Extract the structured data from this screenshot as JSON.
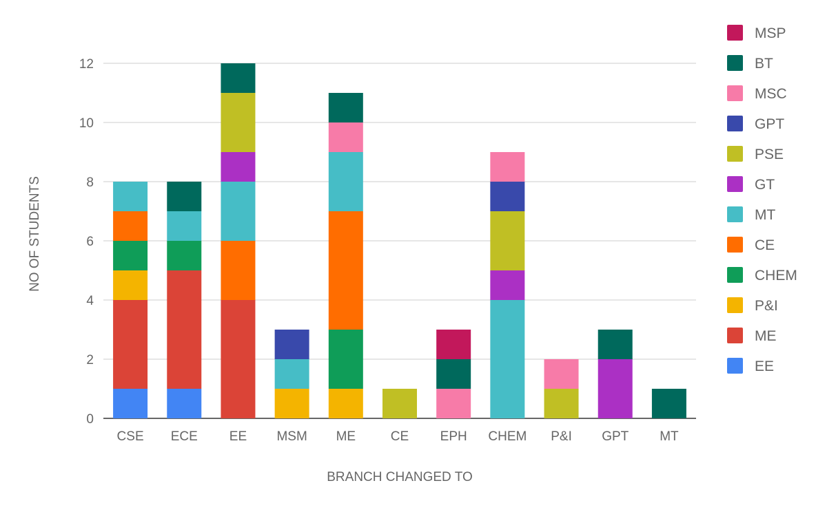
{
  "chart_data": {
    "type": "bar",
    "stacked": true,
    "title": "",
    "xlabel": "BRANCH CHANGED TO",
    "ylabel": "NO OF STUDENTS",
    "ylim": [
      0,
      12
    ],
    "yticks": [
      0,
      2,
      4,
      6,
      8,
      10,
      12
    ],
    "grid": true,
    "legend_position": "right",
    "categories": [
      "CSE",
      "ECE",
      "EE",
      "MSM",
      "ME",
      "CE",
      "EPH",
      "CHEM",
      "P&I",
      "GPT",
      "MT"
    ],
    "series": [
      {
        "name": "EE",
        "color": "#4285F4",
        "values": [
          1,
          1,
          0,
          0,
          0,
          0,
          0,
          0,
          0,
          0,
          0
        ]
      },
      {
        "name": "ME",
        "color": "#DB4437",
        "values": [
          3,
          4,
          4,
          0,
          0,
          0,
          0,
          0,
          0,
          0,
          0
        ]
      },
      {
        "name": "P&I",
        "color": "#F4B400",
        "values": [
          1,
          0,
          0,
          1,
          1,
          0,
          0,
          0,
          0,
          0,
          0
        ]
      },
      {
        "name": "CHEM",
        "color": "#0F9D58",
        "values": [
          1,
          1,
          0,
          0,
          2,
          0,
          0,
          0,
          0,
          0,
          0
        ]
      },
      {
        "name": "CE",
        "color": "#FF6D00",
        "values": [
          1,
          0,
          2,
          0,
          4,
          0,
          0,
          0,
          0,
          0,
          0
        ]
      },
      {
        "name": "MT",
        "color": "#46BDC6",
        "values": [
          1,
          1,
          2,
          1,
          2,
          0,
          0,
          4,
          0,
          0,
          0
        ]
      },
      {
        "name": "GT",
        "color": "#AB30C4",
        "values": [
          0,
          0,
          1,
          0,
          0,
          0,
          0,
          1,
          0,
          2,
          0
        ]
      },
      {
        "name": "PSE",
        "color": "#C0BF24",
        "values": [
          0,
          0,
          2,
          0,
          0,
          1,
          0,
          2,
          1,
          0,
          0
        ]
      },
      {
        "name": "GPT",
        "color": "#3949AB",
        "values": [
          0,
          0,
          0,
          1,
          0,
          0,
          0,
          1,
          0,
          0,
          0
        ]
      },
      {
        "name": "MSC",
        "color": "#F77BA8",
        "values": [
          0,
          0,
          0,
          0,
          1,
          0,
          1,
          1,
          1,
          0,
          0
        ]
      },
      {
        "name": "BT",
        "color": "#00695C",
        "values": [
          0,
          1,
          1,
          0,
          1,
          0,
          1,
          0,
          0,
          1,
          1
        ]
      },
      {
        "name": "MSP",
        "color": "#C2185B",
        "values": [
          0,
          0,
          0,
          0,
          0,
          0,
          1,
          0,
          0,
          0,
          0
        ]
      }
    ]
  }
}
